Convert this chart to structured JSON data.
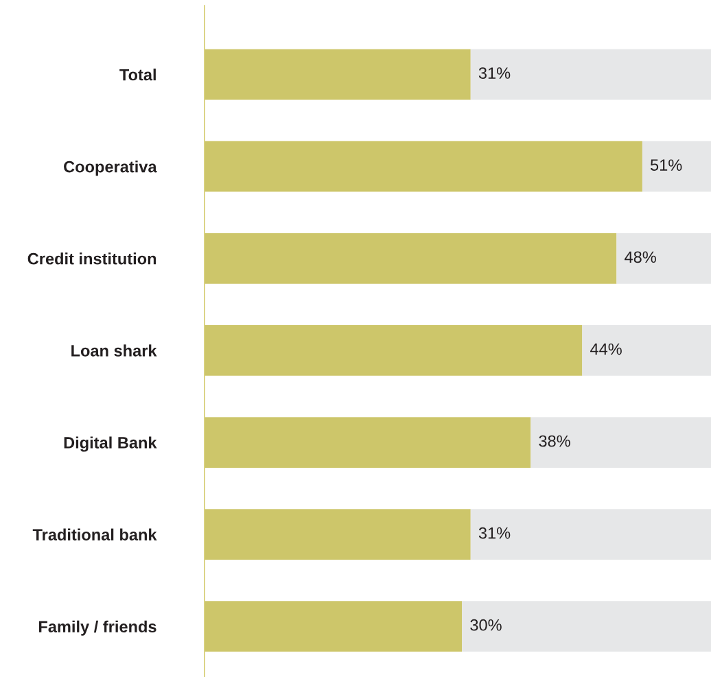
{
  "chart_data": {
    "type": "bar",
    "orientation": "horizontal",
    "stacked": true,
    "categories": [
      "Total",
      "Cooperativa",
      "Credit institution",
      "Loan shark",
      "Digital Bank",
      "Traditional bank",
      "Family / friends"
    ],
    "series": [
      {
        "color": "#cdc66a",
        "values": [
          31,
          51,
          48,
          44,
          38,
          31,
          30
        ],
        "value_labels": [
          "31%",
          "51%",
          "48%",
          "44%",
          "38%",
          "31%",
          "30%"
        ]
      },
      {
        "color": "#e6e7e8",
        "values": [
          28,
          8,
          11,
          15,
          21,
          28,
          29
        ]
      }
    ],
    "xlim": [
      0,
      59
    ],
    "tick_labels": "y",
    "grid": false
  }
}
